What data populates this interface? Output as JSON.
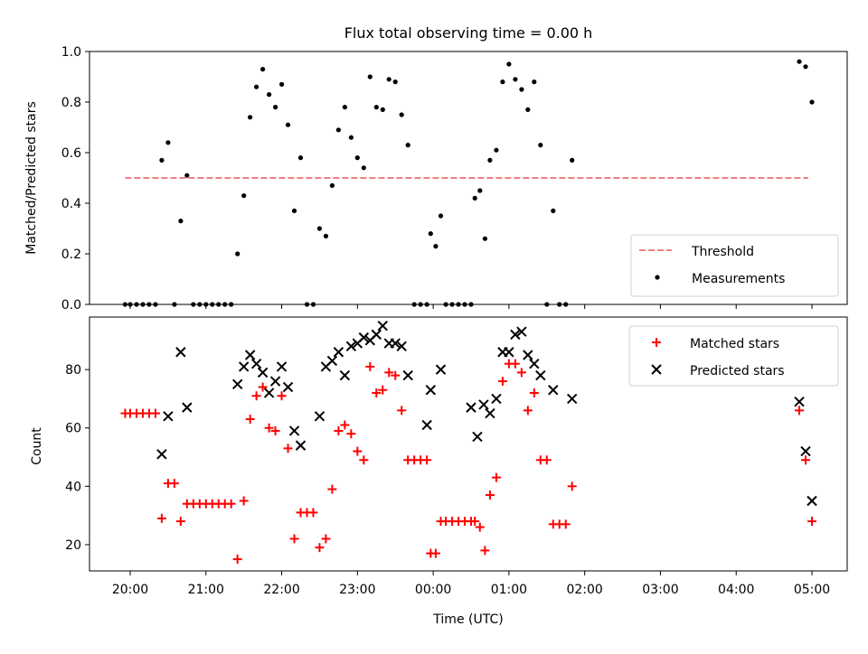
{
  "title": "Flux total observing time = 0.00 h",
  "chart_data": [
    {
      "type": "scatter",
      "panel": "top",
      "ylabel": "Matched/Predicted stars",
      "ylim": [
        0,
        1.0
      ],
      "yticks": [
        0.0,
        0.2,
        0.4,
        0.6,
        0.8,
        1.0
      ],
      "ytick_labels": [
        "0.0",
        "0.2",
        "0.4",
        "0.6",
        "0.8",
        "1.0"
      ],
      "legend_position": "bottom-right",
      "threshold": {
        "name": "Threshold",
        "value": 0.5,
        "x_start": "19:56",
        "x_end": "04:57",
        "color": "#f08080"
      },
      "series": [
        {
          "name": "Measurements",
          "color": "#000000",
          "points": [
            [
              "19:56",
              0
            ],
            [
              "20:00",
              0
            ],
            [
              "20:05",
              0
            ],
            [
              "20:10",
              0
            ],
            [
              "20:15",
              0
            ],
            [
              "20:20",
              0
            ],
            [
              "20:25",
              0.57
            ],
            [
              "20:30",
              0.64
            ],
            [
              "20:35",
              0
            ],
            [
              "20:40",
              0.33
            ],
            [
              "20:45",
              0.51
            ],
            [
              "20:50",
              0
            ],
            [
              "20:55",
              0
            ],
            [
              "21:00",
              0
            ],
            [
              "21:05",
              0
            ],
            [
              "21:10",
              0
            ],
            [
              "21:15",
              0
            ],
            [
              "21:20",
              0
            ],
            [
              "21:25",
              0.2
            ],
            [
              "21:30",
              0.43
            ],
            [
              "21:35",
              0.74
            ],
            [
              "21:40",
              0.86
            ],
            [
              "21:45",
              0.93
            ],
            [
              "21:50",
              0.83
            ],
            [
              "21:55",
              0.78
            ],
            [
              "22:00",
              0.87
            ],
            [
              "22:05",
              0.71
            ],
            [
              "22:10",
              0.37
            ],
            [
              "22:15",
              0.58
            ],
            [
              "22:20",
              0
            ],
            [
              "22:25",
              0
            ],
            [
              "22:30",
              0.3
            ],
            [
              "22:35",
              0.27
            ],
            [
              "22:40",
              0.47
            ],
            [
              "22:45",
              0.69
            ],
            [
              "22:50",
              0.78
            ],
            [
              "22:55",
              0.66
            ],
            [
              "23:00",
              0.58
            ],
            [
              "23:05",
              0.54
            ],
            [
              "23:10",
              0.9
            ],
            [
              "23:15",
              0.78
            ],
            [
              "23:20",
              0.77
            ],
            [
              "23:25",
              0.89
            ],
            [
              "23:30",
              0.88
            ],
            [
              "23:35",
              0.75
            ],
            [
              "23:40",
              0.63
            ],
            [
              "23:45",
              0
            ],
            [
              "23:50",
              0
            ],
            [
              "23:55",
              0
            ],
            [
              "23:58",
              0.28
            ],
            [
              "00:02",
              0.23
            ],
            [
              "00:06",
              0.35
            ],
            [
              "00:10",
              0
            ],
            [
              "00:15",
              0
            ],
            [
              "00:20",
              0
            ],
            [
              "00:25",
              0
            ],
            [
              "00:30",
              0
            ],
            [
              "00:33",
              0.42
            ],
            [
              "00:37",
              0.45
            ],
            [
              "00:41",
              0.26
            ],
            [
              "00:45",
              0.57
            ],
            [
              "00:50",
              0.61
            ],
            [
              "00:55",
              0.88
            ],
            [
              "01:00",
              0.95
            ],
            [
              "01:05",
              0.89
            ],
            [
              "01:10",
              0.85
            ],
            [
              "01:15",
              0.77
            ],
            [
              "01:20",
              0.88
            ],
            [
              "01:25",
              0.63
            ],
            [
              "01:30",
              0
            ],
            [
              "01:35",
              0.37
            ],
            [
              "01:40",
              0
            ],
            [
              "01:45",
              0
            ],
            [
              "01:50",
              0.57
            ],
            [
              "04:50",
              0.96
            ],
            [
              "04:55",
              0.94
            ],
            [
              "05:00",
              0.8
            ]
          ]
        }
      ]
    },
    {
      "type": "scatter",
      "panel": "bottom",
      "xlabel": "Time (UTC)",
      "ylabel": "Count",
      "ylim": [
        11,
        98
      ],
      "yticks": [
        20,
        40,
        60,
        80
      ],
      "ytick_labels": [
        "20",
        "40",
        "60",
        "80"
      ],
      "xtick_labels": [
        "20:00",
        "21:00",
        "22:00",
        "23:00",
        "00:00",
        "01:00",
        "02:00",
        "03:00",
        "04:00",
        "05:00"
      ],
      "legend_position": "top-right",
      "series": [
        {
          "name": "Matched stars",
          "marker": "plus",
          "color": "#ff0000",
          "points": [
            [
              "19:56",
              65
            ],
            [
              "20:00",
              65
            ],
            [
              "20:05",
              65
            ],
            [
              "20:10",
              65
            ],
            [
              "20:15",
              65
            ],
            [
              "20:20",
              65
            ],
            [
              "20:25",
              29
            ],
            [
              "20:30",
              41
            ],
            [
              "20:35",
              41
            ],
            [
              "20:40",
              28
            ],
            [
              "20:45",
              34
            ],
            [
              "20:50",
              34
            ],
            [
              "20:55",
              34
            ],
            [
              "21:00",
              34
            ],
            [
              "21:05",
              34
            ],
            [
              "21:10",
              34
            ],
            [
              "21:15",
              34
            ],
            [
              "21:20",
              34
            ],
            [
              "21:25",
              15
            ],
            [
              "21:30",
              35
            ],
            [
              "21:35",
              63
            ],
            [
              "21:40",
              71
            ],
            [
              "21:45",
              74
            ],
            [
              "21:50",
              60
            ],
            [
              "21:55",
              59
            ],
            [
              "22:00",
              71
            ],
            [
              "22:05",
              53
            ],
            [
              "22:10",
              22
            ],
            [
              "22:15",
              31
            ],
            [
              "22:20",
              31
            ],
            [
              "22:25",
              31
            ],
            [
              "22:30",
              19
            ],
            [
              "22:35",
              22
            ],
            [
              "22:40",
              39
            ],
            [
              "22:45",
              59
            ],
            [
              "22:50",
              61
            ],
            [
              "22:55",
              58
            ],
            [
              "23:00",
              52
            ],
            [
              "23:05",
              49
            ],
            [
              "23:10",
              81
            ],
            [
              "23:15",
              72
            ],
            [
              "23:20",
              73
            ],
            [
              "23:25",
              79
            ],
            [
              "23:30",
              78
            ],
            [
              "23:35",
              66
            ],
            [
              "23:40",
              49
            ],
            [
              "23:45",
              49
            ],
            [
              "23:50",
              49
            ],
            [
              "23:55",
              49
            ],
            [
              "23:58",
              17
            ],
            [
              "00:02",
              17
            ],
            [
              "00:06",
              28
            ],
            [
              "00:10",
              28
            ],
            [
              "00:15",
              28
            ],
            [
              "00:20",
              28
            ],
            [
              "00:25",
              28
            ],
            [
              "00:30",
              28
            ],
            [
              "00:33",
              28
            ],
            [
              "00:37",
              26
            ],
            [
              "00:41",
              18
            ],
            [
              "00:45",
              37
            ],
            [
              "00:50",
              43
            ],
            [
              "00:55",
              76
            ],
            [
              "01:00",
              82
            ],
            [
              "01:05",
              82
            ],
            [
              "01:10",
              79
            ],
            [
              "01:15",
              66
            ],
            [
              "01:20",
              72
            ],
            [
              "01:25",
              49
            ],
            [
              "01:30",
              49
            ],
            [
              "01:35",
              27
            ],
            [
              "01:40",
              27
            ],
            [
              "01:45",
              27
            ],
            [
              "01:50",
              40
            ],
            [
              "04:50",
              66
            ],
            [
              "04:55",
              49
            ],
            [
              "05:00",
              28
            ]
          ]
        },
        {
          "name": "Predicted stars",
          "marker": "x",
          "color": "#000000",
          "points": [
            [
              "20:25",
              51
            ],
            [
              "20:30",
              64
            ],
            [
              "20:40",
              86
            ],
            [
              "20:45",
              67
            ],
            [
              "21:25",
              75
            ],
            [
              "21:30",
              81
            ],
            [
              "21:35",
              85
            ],
            [
              "21:40",
              82
            ],
            [
              "21:45",
              79
            ],
            [
              "21:50",
              72
            ],
            [
              "21:55",
              76
            ],
            [
              "22:00",
              81
            ],
            [
              "22:05",
              74
            ],
            [
              "22:10",
              59
            ],
            [
              "22:15",
              54
            ],
            [
              "22:30",
              64
            ],
            [
              "22:35",
              81
            ],
            [
              "22:40",
              83
            ],
            [
              "22:45",
              86
            ],
            [
              "22:50",
              78
            ],
            [
              "22:55",
              88
            ],
            [
              "23:00",
              89
            ],
            [
              "23:05",
              91
            ],
            [
              "23:10",
              90
            ],
            [
              "23:15",
              92
            ],
            [
              "23:20",
              95
            ],
            [
              "23:25",
              89
            ],
            [
              "23:30",
              89
            ],
            [
              "23:35",
              88
            ],
            [
              "23:40",
              78
            ],
            [
              "23:55",
              61
            ],
            [
              "23:58",
              73
            ],
            [
              "00:06",
              80
            ],
            [
              "00:30",
              67
            ],
            [
              "00:35",
              57
            ],
            [
              "00:40",
              68
            ],
            [
              "00:45",
              65
            ],
            [
              "00:50",
              70
            ],
            [
              "00:55",
              86
            ],
            [
              "01:00",
              86
            ],
            [
              "01:05",
              92
            ],
            [
              "01:10",
              93
            ],
            [
              "01:15",
              85
            ],
            [
              "01:20",
              82
            ],
            [
              "01:25",
              78
            ],
            [
              "01:35",
              73
            ],
            [
              "01:50",
              70
            ],
            [
              "04:50",
              69
            ],
            [
              "04:55",
              52
            ],
            [
              "05:00",
              35
            ]
          ]
        }
      ]
    }
  ]
}
